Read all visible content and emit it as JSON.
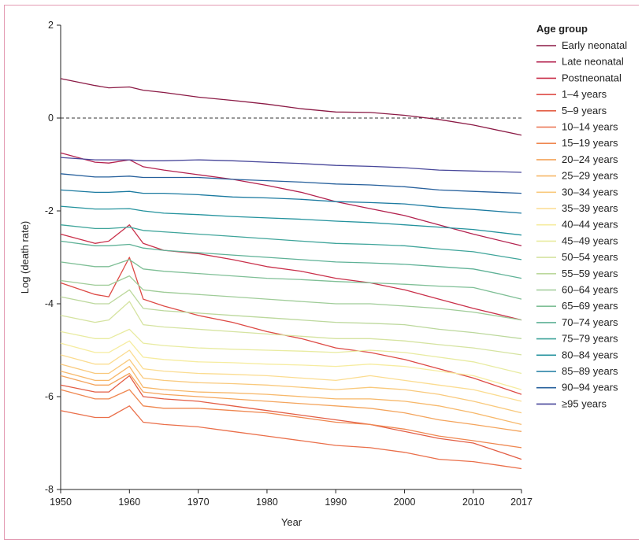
{
  "chart_data": {
    "type": "line",
    "title": "",
    "xlabel": "Year",
    "ylabel": "Log (death rate)",
    "xlim": [
      1950,
      2017
    ],
    "ylim": [
      -8,
      2
    ],
    "xticks": [
      "1950",
      "1960",
      "1970",
      "1980",
      "1990",
      "2000",
      "2010",
      "2017"
    ],
    "yticks": [
      "2",
      "0",
      "-2",
      "-4",
      "-6",
      "-8"
    ],
    "xtick_values": [
      1950,
      1960,
      1970,
      1980,
      1990,
      2000,
      2010,
      2017
    ],
    "ytick_values": [
      2,
      0,
      -2,
      -4,
      -6,
      -8
    ],
    "reference_line": {
      "y": 0,
      "style": "dashed"
    },
    "legend_title": "Age group",
    "legend_position": "right",
    "x": [
      1950,
      1955,
      1957,
      1960,
      1962,
      1965,
      1970,
      1975,
      1980,
      1985,
      1990,
      1995,
      2000,
      2005,
      2010,
      2017
    ],
    "series": [
      {
        "name": "Early neonatal",
        "color": "#8b1a45",
        "values": [
          0.85,
          0.7,
          0.65,
          0.67,
          0.6,
          0.55,
          0.45,
          0.38,
          0.3,
          0.2,
          0.13,
          0.12,
          0.06,
          -0.03,
          -0.15,
          -0.37
        ]
      },
      {
        "name": "Late neonatal",
        "color": "#b3224f",
        "values": [
          -0.75,
          -0.95,
          -0.97,
          -0.9,
          -1.05,
          -1.12,
          -1.22,
          -1.32,
          -1.45,
          -1.6,
          -1.8,
          -1.95,
          -2.1,
          -2.3,
          -2.5,
          -2.75
        ]
      },
      {
        "name": "Postneonatal",
        "color": "#c9304a",
        "values": [
          -2.5,
          -2.7,
          -2.65,
          -2.3,
          -2.7,
          -2.85,
          -2.92,
          -3.05,
          -3.2,
          -3.3,
          -3.45,
          -3.55,
          -3.7,
          -3.9,
          -4.1,
          -4.35
        ]
      },
      {
        "name": "1–4 years",
        "color": "#dd4a45",
        "values": [
          -3.55,
          -3.8,
          -3.85,
          -3.0,
          -3.9,
          -4.05,
          -4.25,
          -4.4,
          -4.6,
          -4.75,
          -4.95,
          -5.05,
          -5.2,
          -5.4,
          -5.6,
          -5.95
        ]
      },
      {
        "name": "5–9 years",
        "color": "#e35e45",
        "values": [
          -5.75,
          -5.9,
          -5.9,
          -5.55,
          -6.0,
          -6.05,
          -6.1,
          -6.2,
          -6.3,
          -6.4,
          -6.5,
          -6.6,
          -6.75,
          -6.9,
          -7.0,
          -7.35
        ]
      },
      {
        "name": "10–14 years",
        "color": "#ea6f4a",
        "values": [
          -6.3,
          -6.45,
          -6.45,
          -6.2,
          -6.55,
          -6.6,
          -6.65,
          -6.75,
          -6.85,
          -6.95,
          -7.05,
          -7.1,
          -7.2,
          -7.35,
          -7.4,
          -7.55
        ]
      },
      {
        "name": "15–19 years",
        "color": "#ef8750",
        "values": [
          -5.85,
          -6.05,
          -6.05,
          -5.85,
          -6.2,
          -6.25,
          -6.25,
          -6.3,
          -6.35,
          -6.45,
          -6.55,
          -6.6,
          -6.7,
          -6.85,
          -6.95,
          -7.1
        ]
      },
      {
        "name": "20–24 years",
        "color": "#f4a45c",
        "values": [
          -5.55,
          -5.75,
          -5.75,
          -5.5,
          -5.9,
          -5.95,
          -6.0,
          -6.05,
          -6.1,
          -6.15,
          -6.2,
          -6.25,
          -6.35,
          -6.5,
          -6.6,
          -6.75
        ]
      },
      {
        "name": "25–29 years",
        "color": "#f7b86a",
        "values": [
          -5.45,
          -5.65,
          -5.65,
          -5.35,
          -5.8,
          -5.85,
          -5.9,
          -5.92,
          -5.95,
          -6.0,
          -6.05,
          -6.05,
          -6.1,
          -6.2,
          -6.35,
          -6.6
        ]
      },
      {
        "name": "30–34 years",
        "color": "#f9c97c",
        "values": [
          -5.3,
          -5.5,
          -5.5,
          -5.2,
          -5.6,
          -5.65,
          -5.7,
          -5.72,
          -5.75,
          -5.8,
          -5.85,
          -5.8,
          -5.85,
          -5.95,
          -6.1,
          -6.35
        ]
      },
      {
        "name": "35–39 years",
        "color": "#fbdc90",
        "values": [
          -5.1,
          -5.3,
          -5.3,
          -5.0,
          -5.4,
          -5.45,
          -5.5,
          -5.52,
          -5.55,
          -5.6,
          -5.65,
          -5.55,
          -5.65,
          -5.75,
          -5.85,
          -6.1
        ]
      },
      {
        "name": "40–44 years",
        "color": "#f6ec9f",
        "values": [
          -4.85,
          -5.05,
          -5.05,
          -4.8,
          -5.15,
          -5.2,
          -5.25,
          -5.27,
          -5.3,
          -5.32,
          -5.35,
          -5.3,
          -5.35,
          -5.45,
          -5.55,
          -5.85
        ]
      },
      {
        "name": "45–49 years",
        "color": "#e8eba0",
        "values": [
          -4.6,
          -4.75,
          -4.75,
          -4.55,
          -4.85,
          -4.9,
          -4.95,
          -4.98,
          -5.0,
          -5.02,
          -5.05,
          -5.0,
          -5.05,
          -5.15,
          -5.25,
          -5.5
        ]
      },
      {
        "name": "50–54 years",
        "color": "#d5e3a0",
        "values": [
          -4.25,
          -4.4,
          -4.35,
          -3.95,
          -4.45,
          -4.5,
          -4.55,
          -4.6,
          -4.65,
          -4.7,
          -4.75,
          -4.75,
          -4.8,
          -4.88,
          -4.95,
          -5.1
        ]
      },
      {
        "name": "55–59 years",
        "color": "#bcd89c",
        "values": [
          -3.85,
          -4.0,
          -4.0,
          -3.7,
          -4.1,
          -4.15,
          -4.2,
          -4.25,
          -4.3,
          -4.35,
          -4.4,
          -4.42,
          -4.45,
          -4.55,
          -4.62,
          -4.75
        ]
      },
      {
        "name": "60–64 years",
        "color": "#9fcc98",
        "values": [
          -3.5,
          -3.6,
          -3.6,
          -3.4,
          -3.7,
          -3.75,
          -3.8,
          -3.85,
          -3.9,
          -3.95,
          -4.0,
          -4.0,
          -4.05,
          -4.1,
          -4.18,
          -4.35
        ]
      },
      {
        "name": "65–69 years",
        "color": "#7fbf96",
        "values": [
          -3.1,
          -3.2,
          -3.2,
          -3.05,
          -3.25,
          -3.3,
          -3.35,
          -3.4,
          -3.45,
          -3.48,
          -3.52,
          -3.55,
          -3.58,
          -3.62,
          -3.65,
          -3.9
        ]
      },
      {
        "name": "70–74 years",
        "color": "#5eb196",
        "values": [
          -2.65,
          -2.75,
          -2.75,
          -2.72,
          -2.8,
          -2.85,
          -2.9,
          -2.95,
          -3.0,
          -3.05,
          -3.1,
          -3.12,
          -3.15,
          -3.2,
          -3.25,
          -3.45
        ]
      },
      {
        "name": "75–79 years",
        "color": "#3ea49a",
        "values": [
          -2.3,
          -2.38,
          -2.38,
          -2.35,
          -2.42,
          -2.45,
          -2.5,
          -2.55,
          -2.6,
          -2.65,
          -2.7,
          -2.72,
          -2.75,
          -2.82,
          -2.88,
          -3.05
        ]
      },
      {
        "name": "80–84 years",
        "color": "#23929d",
        "values": [
          -1.9,
          -1.96,
          -1.96,
          -1.95,
          -2.0,
          -2.05,
          -2.08,
          -2.12,
          -2.15,
          -2.18,
          -2.22,
          -2.25,
          -2.3,
          -2.35,
          -2.4,
          -2.52
        ]
      },
      {
        "name": "85–89 years",
        "color": "#1b7aa0",
        "values": [
          -1.55,
          -1.6,
          -1.6,
          -1.58,
          -1.62,
          -1.62,
          -1.65,
          -1.7,
          -1.72,
          -1.75,
          -1.8,
          -1.82,
          -1.85,
          -1.92,
          -1.97,
          -2.05
        ]
      },
      {
        "name": "90–94 years",
        "color": "#27609c",
        "values": [
          -1.2,
          -1.27,
          -1.27,
          -1.25,
          -1.28,
          -1.28,
          -1.28,
          -1.32,
          -1.35,
          -1.38,
          -1.42,
          -1.44,
          -1.48,
          -1.55,
          -1.58,
          -1.62
        ]
      },
      {
        "name": "≥95 years",
        "color": "#48479a",
        "values": [
          -0.85,
          -0.9,
          -0.9,
          -0.9,
          -0.92,
          -0.92,
          -0.9,
          -0.92,
          -0.95,
          -0.98,
          -1.02,
          -1.04,
          -1.07,
          -1.12,
          -1.14,
          -1.17
        ]
      }
    ]
  }
}
